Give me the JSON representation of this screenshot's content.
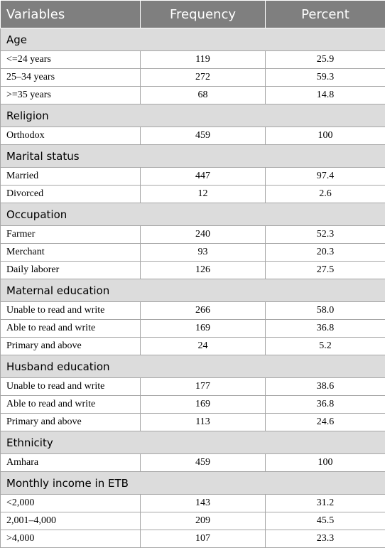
{
  "header": {
    "variables": "Variables",
    "frequency": "Frequency",
    "percent": "Percent"
  },
  "sections": [
    {
      "title": "Age",
      "rows": [
        {
          "label": "<=24 years",
          "frequency": "119",
          "percent": "25.9"
        },
        {
          "label": "25–34 years",
          "frequency": "272",
          "percent": "59.3"
        },
        {
          "label": ">=35 years",
          "frequency": "68",
          "percent": "14.8"
        }
      ]
    },
    {
      "title": "Religion",
      "rows": [
        {
          "label": "Orthodox",
          "frequency": "459",
          "percent": "100"
        }
      ]
    },
    {
      "title": "Marital status",
      "rows": [
        {
          "label": "Married",
          "frequency": "447",
          "percent": "97.4"
        },
        {
          "label": "Divorced",
          "frequency": "12",
          "percent": "2.6"
        }
      ]
    },
    {
      "title": "Occupation",
      "rows": [
        {
          "label": "Farmer",
          "frequency": "240",
          "percent": "52.3"
        },
        {
          "label": "Merchant",
          "frequency": "93",
          "percent": "20.3"
        },
        {
          "label": "Daily laborer",
          "frequency": "126",
          "percent": "27.5"
        }
      ]
    },
    {
      "title": "Maternal education",
      "rows": [
        {
          "label": "Unable to read and write",
          "frequency": "266",
          "percent": "58.0"
        },
        {
          "label": "Able to read and write",
          "frequency": "169",
          "percent": "36.8"
        },
        {
          "label": "Primary and above",
          "frequency": "24",
          "percent": "5.2"
        }
      ]
    },
    {
      "title": "Husband education",
      "rows": [
        {
          "label": "Unable to read and write",
          "frequency": "177",
          "percent": "38.6"
        },
        {
          "label": "Able to read and write",
          "frequency": "169",
          "percent": "36.8"
        },
        {
          "label": "Primary and above",
          "frequency": "113",
          "percent": "24.6"
        }
      ]
    },
    {
      "title": "Ethnicity",
      "rows": [
        {
          "label": "Amhara",
          "frequency": "459",
          "percent": "100"
        }
      ]
    },
    {
      "title": "Monthly income in ETB",
      "rows": [
        {
          "label": "<2,000",
          "frequency": "143",
          "percent": "31.2"
        },
        {
          "label": "2,001–4,000",
          "frequency": "209",
          "percent": "45.5"
        },
        {
          "label": ">4,000",
          "frequency": "107",
          "percent": "23.3"
        }
      ]
    }
  ]
}
